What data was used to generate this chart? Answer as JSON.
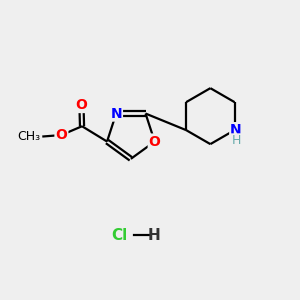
{
  "background_color": "#efefef",
  "bond_color": "#000000",
  "n_color": "#0000ff",
  "o_color": "#ff0000",
  "cl_color": "#33cc33",
  "nh_color": "#66aaaa",
  "line_width": 1.6,
  "font_size": 10,
  "xlim": [
    0,
    10
  ],
  "ylim": [
    0,
    10
  ]
}
